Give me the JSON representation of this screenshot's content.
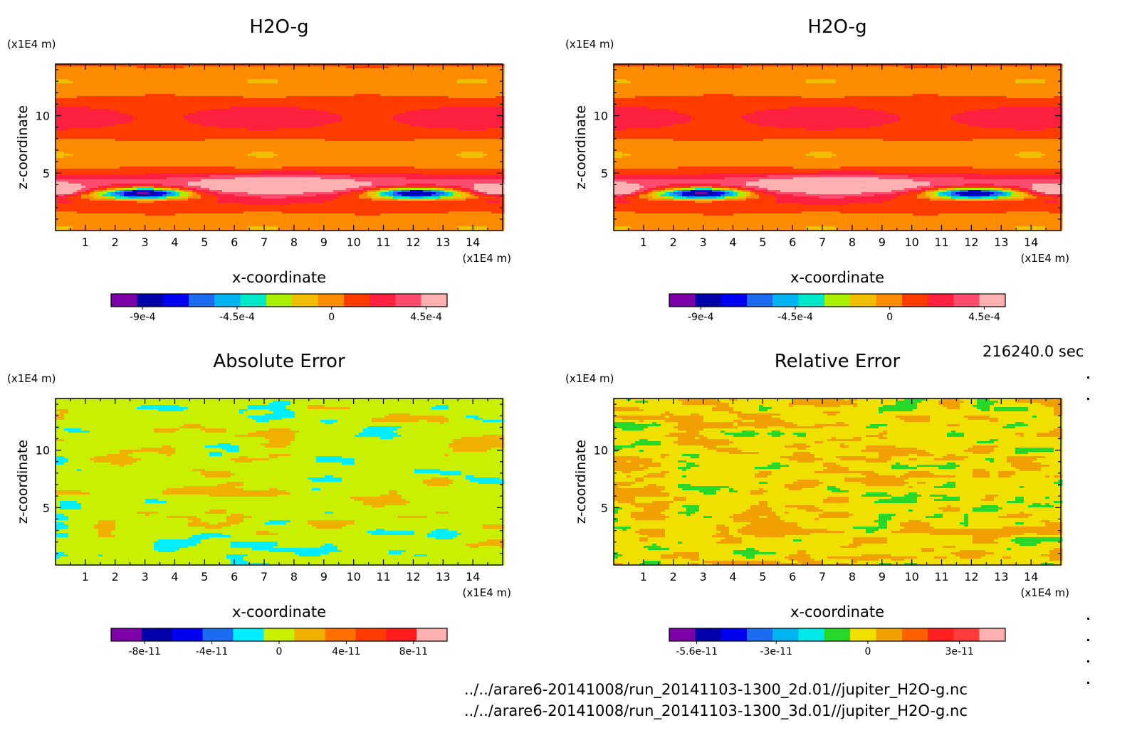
{
  "time_label": "216240.0 sec",
  "file_lines": [
    "../../arare6-20141008/run_20141103-1300_2d.01//jupiter_H2O-g.nc",
    "../../arare6-20141008/run_20141103-1300_3d.01//jupiter_H2O-g.nc"
  ],
  "chart_data": [
    {
      "type": "heatmap",
      "title": "H2O-g",
      "xlabel": "x-coordinate",
      "ylabel": "z-coordinate",
      "x_unit": "(x1E4 m)",
      "y_unit": "(x1E4 m)",
      "xlim": [
        0,
        15
      ],
      "ylim": [
        0,
        14.5
      ],
      "x_ticks": [
        "1",
        "2",
        "3",
        "4",
        "5",
        "6",
        "7",
        "8",
        "9",
        "10",
        "11",
        "12",
        "13",
        "14"
      ],
      "y_ticks": [
        "5",
        "10"
      ],
      "colorbar": {
        "colors": [
          "#7b00a8",
          "#0000a8",
          "#0000f0",
          "#1c6cf0",
          "#00b4f0",
          "#00e8c8",
          "#a8f000",
          "#f0c000",
          "#ff8c00",
          "#ff3c00",
          "#ff2040",
          "#ff4c6c",
          "#ffb0b0"
        ],
        "labels": [
          "-9e-4",
          "-4.5e-4",
          "0",
          "4.5e-4"
        ],
        "label_values": [
          -0.0009,
          -0.00045,
          0,
          0.00045
        ],
        "range": [
          -0.00105,
          0.00055
        ]
      }
    },
    {
      "type": "heatmap",
      "title": "H2O-g",
      "xlabel": "x-coordinate",
      "ylabel": "z-coordinate",
      "x_unit": "(x1E4 m)",
      "y_unit": "(x1E4 m)",
      "xlim": [
        0,
        15
      ],
      "ylim": [
        0,
        14.5
      ],
      "x_ticks": [
        "1",
        "2",
        "3",
        "4",
        "5",
        "6",
        "7",
        "8",
        "9",
        "10",
        "11",
        "12",
        "13",
        "14"
      ],
      "y_ticks": [
        "5",
        "10"
      ],
      "colorbar": {
        "colors": [
          "#7b00a8",
          "#0000a8",
          "#0000f0",
          "#1c6cf0",
          "#00b4f0",
          "#00e8c8",
          "#a8f000",
          "#f0c000",
          "#ff8c00",
          "#ff3c00",
          "#ff2040",
          "#ff4c6c",
          "#ffb0b0"
        ],
        "labels": [
          "-9e-4",
          "-4.5e-4",
          "0",
          "4.5e-4"
        ],
        "label_values": [
          -0.0009,
          -0.00045,
          0,
          0.00045
        ],
        "range": [
          -0.00105,
          0.00055
        ]
      }
    },
    {
      "type": "heatmap",
      "title": "Absolute Error",
      "xlabel": "x-coordinate",
      "ylabel": "z-coordinate",
      "x_unit": "(x1E4 m)",
      "y_unit": "(x1E4 m)",
      "xlim": [
        0,
        15
      ],
      "ylim": [
        0,
        14.5
      ],
      "x_ticks": [
        "1",
        "2",
        "3",
        "4",
        "5",
        "6",
        "7",
        "8",
        "9",
        "10",
        "11",
        "12",
        "13",
        "14"
      ],
      "y_ticks": [
        "5",
        "10"
      ],
      "colorbar": {
        "colors": [
          "#7b00a8",
          "#0000a8",
          "#0000f0",
          "#1c6cf0",
          "#00eeff",
          "#c8f000",
          "#f0b000",
          "#ff7000",
          "#ff3c00",
          "#ff1c1c",
          "#ffb0b0"
        ],
        "labels": [
          "-8e-11",
          "-4e-11",
          "0",
          "4e-11",
          "8e-11"
        ],
        "label_values": [
          -8e-11,
          -4e-11,
          0,
          4e-11,
          8e-11
        ],
        "range": [
          -1e-10,
          1e-10
        ]
      }
    },
    {
      "type": "heatmap",
      "title": "Relative Error",
      "xlabel": "x-coordinate",
      "ylabel": "z-coordinate",
      "x_unit": "(x1E4 m)",
      "y_unit": "(x1E4 m)",
      "xlim": [
        0,
        15
      ],
      "ylim": [
        0,
        14.5
      ],
      "x_ticks": [
        "1",
        "2",
        "3",
        "4",
        "5",
        "6",
        "7",
        "8",
        "9",
        "10",
        "11",
        "12",
        "13",
        "14"
      ],
      "y_ticks": [
        "5",
        "10"
      ],
      "colorbar": {
        "colors": [
          "#7b00a8",
          "#0000a8",
          "#0000f0",
          "#1c6cf0",
          "#00b4f0",
          "#00e8e8",
          "#28d828",
          "#f0e000",
          "#f0a000",
          "#ff6000",
          "#ff2020",
          "#ff3c3c",
          "#ffb0b0"
        ],
        "labels": [
          "-5.6e-11",
          "-3e-11",
          "0",
          "3e-11"
        ],
        "label_values": [
          -5.6e-11,
          -3e-11,
          0,
          3e-11
        ],
        "range": [
          -6.5e-11,
          4.5e-11
        ]
      }
    }
  ]
}
